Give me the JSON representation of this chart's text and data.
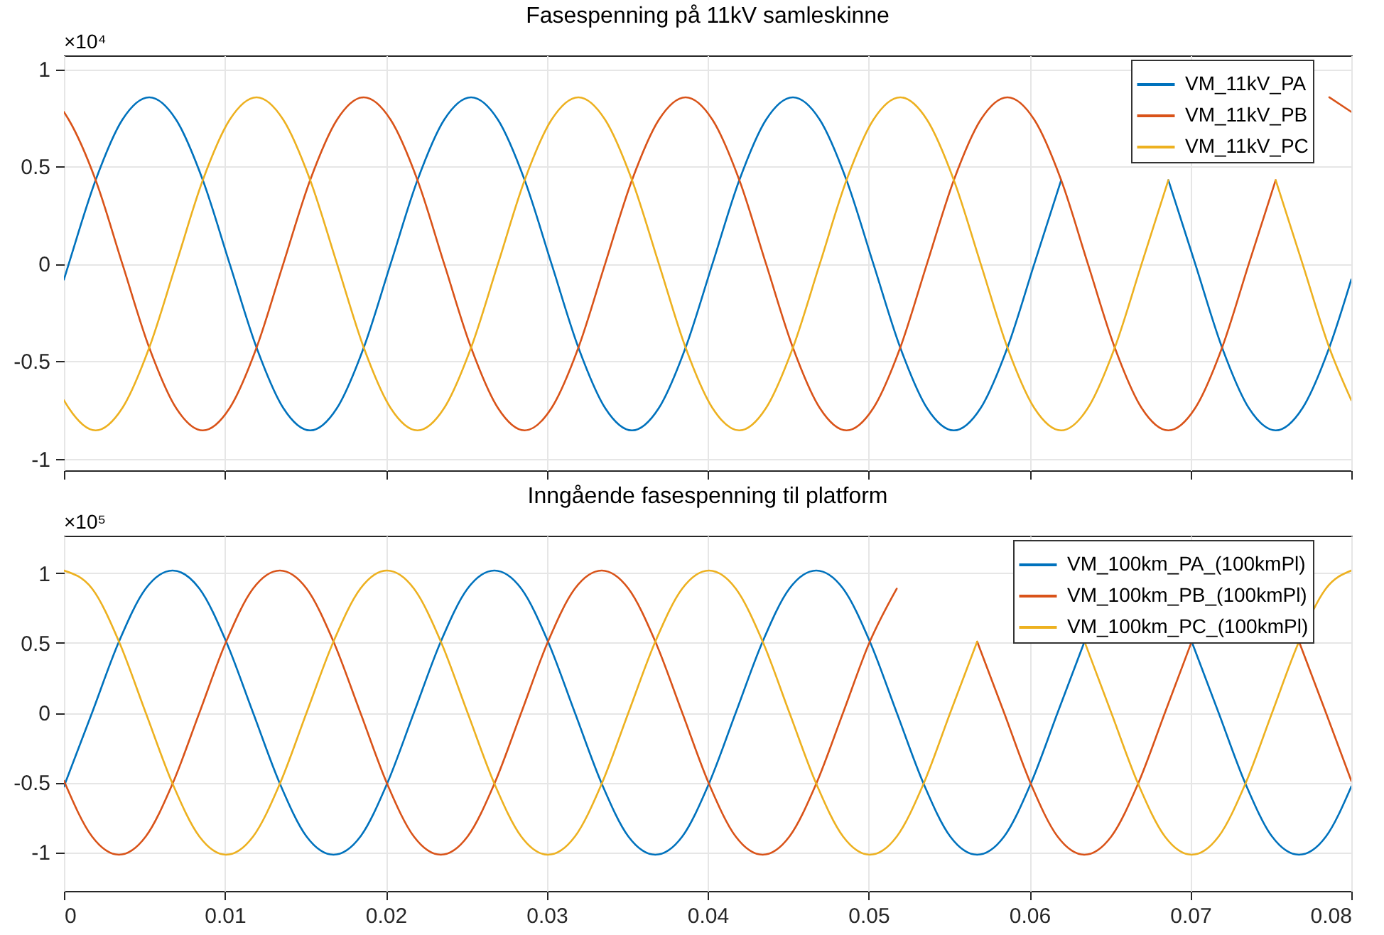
{
  "chart_data": [
    {
      "type": "line",
      "title": "Fasespenning på 11kV samleskinne",
      "annotations": [
        "×10⁴"
      ],
      "x": [
        0,
        0.0003,
        0.00197,
        0.00363,
        0.0053,
        0.00697,
        0.00863,
        0.0103,
        0.01197,
        0.01363,
        0.0153,
        0.01697,
        0.01863,
        0.0203,
        0.02197,
        0.02363,
        0.0253,
        0.02697,
        0.02863,
        0.0303,
        0.03197,
        0.03363,
        0.0353,
        0.03697,
        0.03863,
        0.0403,
        0.04197,
        0.04363,
        0.0453,
        0.04697,
        0.04863,
        0.0503,
        0.05197,
        0.05363,
        0.0553,
        0.05697,
        0.05863,
        0.0603,
        0.06197,
        0.06363,
        0.0653,
        0.06697,
        0.06863,
        0.0703,
        0.07197,
        0.07363,
        0.0753,
        0.07697,
        0.07863,
        0.08
      ],
      "series": [
        {
          "name": "VM_11kV_PA",
          "color": "#0072bd",
          "values": [
            -0.08,
            0,
            0.43,
            0.74,
            0.855,
            0.74,
            0.43,
            0,
            -0.43,
            -0.74,
            -0.855,
            -0.74,
            -0.43,
            0,
            0.43,
            0.74,
            0.855,
            0.74,
            0.43,
            0,
            -0.43,
            -0.74,
            -0.855,
            -0.74,
            -0.43,
            0,
            0.43,
            0.74,
            0.855,
            0.74,
            0.43,
            0,
            -0.43,
            -0.74,
            -0.855,
            -0.74,
            -0.43,
            0,
            0.43,
            null,
            null,
            null,
            0.43,
            0,
            -0.43,
            -0.74,
            -0.855,
            -0.74,
            -0.43,
            -0.08
          ]
        },
        {
          "name": "VM_11kV_PB",
          "color": "#d95319",
          "values": [
            0.78,
            0.74,
            0.43,
            0,
            -0.43,
            -0.74,
            -0.855,
            -0.74,
            -0.43,
            0,
            0.43,
            0.74,
            0.855,
            0.74,
            0.43,
            0,
            -0.43,
            -0.74,
            -0.855,
            -0.74,
            -0.43,
            0,
            0.43,
            0.74,
            0.855,
            0.74,
            0.43,
            0,
            -0.43,
            -0.74,
            -0.855,
            -0.74,
            -0.43,
            0,
            0.43,
            0.74,
            0.855,
            0.74,
            0.43,
            0,
            -0.43,
            -0.74,
            -0.855,
            -0.74,
            -0.43,
            0,
            0.43,
            null,
            0.855,
            0.78
          ]
        },
        {
          "name": "VM_11kV_PC",
          "color": "#edb120",
          "values": [
            -0.7,
            -0.74,
            -0.855,
            -0.74,
            -0.43,
            0,
            0.43,
            0.74,
            0.855,
            0.74,
            0.43,
            0,
            -0.43,
            -0.74,
            -0.855,
            -0.74,
            -0.43,
            0,
            0.43,
            0.74,
            0.855,
            0.74,
            0.43,
            0,
            -0.43,
            -0.74,
            -0.855,
            -0.74,
            -0.43,
            0,
            0.43,
            0.74,
            0.855,
            0.74,
            0.43,
            0,
            -0.43,
            -0.74,
            -0.855,
            -0.74,
            -0.43,
            0,
            0.43,
            null,
            null,
            null,
            0.43,
            0,
            -0.43,
            -0.7
          ]
        }
      ],
      "xlim": [
        0,
        0.08
      ],
      "xticks": [
        0,
        0.01,
        0.02,
        0.03,
        0.04,
        0.05,
        0.06,
        0.07,
        0.08
      ],
      "ylim": [
        -1.06,
        1.07
      ],
      "yticks": [
        -1,
        -0.5,
        0,
        0.5,
        1
      ],
      "tick_labels": "y",
      "grid": true,
      "legend": "top right",
      "line_style": "solid"
    },
    {
      "type": "line",
      "title": "Inngående fasespenning til platform",
      "annotations": [
        "×10⁵"
      ],
      "x": [
        0,
        0.00175,
        0.00342,
        0.00508,
        0.00675,
        0.00842,
        0.01008,
        0.01175,
        0.01342,
        0.01508,
        0.01675,
        0.01842,
        0.02008,
        0.02175,
        0.02342,
        0.02508,
        0.02675,
        0.02842,
        0.03008,
        0.03175,
        0.03342,
        0.03508,
        0.03675,
        0.03842,
        0.04008,
        0.04175,
        0.04342,
        0.04508,
        0.04675,
        0.04842,
        0.05008,
        0.05175,
        0.05342,
        0.05508,
        0.05675,
        0.05842,
        0.06008,
        0.06175,
        0.06342,
        0.06508,
        0.06675,
        0.06842,
        0.07008,
        0.07175,
        0.07342,
        0.07508,
        0.07675,
        0.07842,
        0.08
      ],
      "series": [
        {
          "name": "VM_100km_PA_(100kmPl)",
          "color": "#0072bd",
          "values": [
            -0.53,
            0,
            0.51,
            0.89,
            1.02,
            0.89,
            0.51,
            0,
            -0.51,
            -0.89,
            -1.02,
            -0.89,
            -0.51,
            0,
            0.51,
            0.89,
            1.02,
            0.89,
            0.51,
            0,
            -0.51,
            -0.89,
            -1.02,
            -0.89,
            -0.51,
            0,
            0.51,
            0.89,
            1.02,
            0.89,
            0.51,
            0,
            -0.51,
            -0.89,
            -1.02,
            -0.89,
            -0.51,
            0,
            0.51,
            null,
            null,
            null,
            0.51,
            0,
            -0.51,
            -0.89,
            -1.02,
            -0.89,
            -0.53
          ]
        },
        {
          "name": "VM_100km_PB_(100kmPl)",
          "color": "#d95319",
          "values": [
            -0.49,
            -0.89,
            -1.02,
            -0.89,
            -0.51,
            0,
            0.51,
            0.89,
            1.02,
            0.89,
            0.51,
            0,
            -0.51,
            -0.89,
            -1.02,
            -0.89,
            -0.51,
            0,
            0.51,
            0.89,
            1.02,
            0.89,
            0.51,
            0,
            -0.51,
            -0.89,
            -1.02,
            -0.89,
            -0.51,
            0,
            0.51,
            0.89,
            null,
            null,
            0.51,
            0,
            -0.51,
            -0.89,
            -1.02,
            -0.89,
            -0.51,
            0,
            0.51,
            null,
            null,
            null,
            0.51,
            0,
            -0.49
          ]
        },
        {
          "name": "VM_100km_PC_(100kmPl)",
          "color": "#edb120",
          "values": [
            1.02,
            0.89,
            0.51,
            0,
            -0.51,
            -0.89,
            -1.02,
            -0.89,
            -0.51,
            0,
            0.51,
            0.89,
            1.02,
            0.89,
            0.51,
            0,
            -0.51,
            -0.89,
            -1.02,
            -0.89,
            -0.51,
            0,
            0.51,
            0.89,
            1.02,
            0.89,
            0.51,
            0,
            -0.51,
            -0.89,
            -1.02,
            -0.89,
            -0.51,
            0,
            0.51,
            null,
            null,
            null,
            0.51,
            0,
            -0.51,
            -0.89,
            -1.02,
            -0.89,
            -0.51,
            0,
            0.51,
            0.89,
            1.02
          ]
        }
      ],
      "xlim": [
        0,
        0.08
      ],
      "xticks": [
        0,
        0.01,
        0.02,
        0.03,
        0.04,
        0.05,
        0.06,
        0.07,
        0.08
      ],
      "ylim": [
        -1.28,
        1.27
      ],
      "yticks": [
        -1,
        -0.5,
        0,
        0.5,
        1
      ],
      "grid": true,
      "legend": "top right",
      "line_style": "solid"
    }
  ]
}
